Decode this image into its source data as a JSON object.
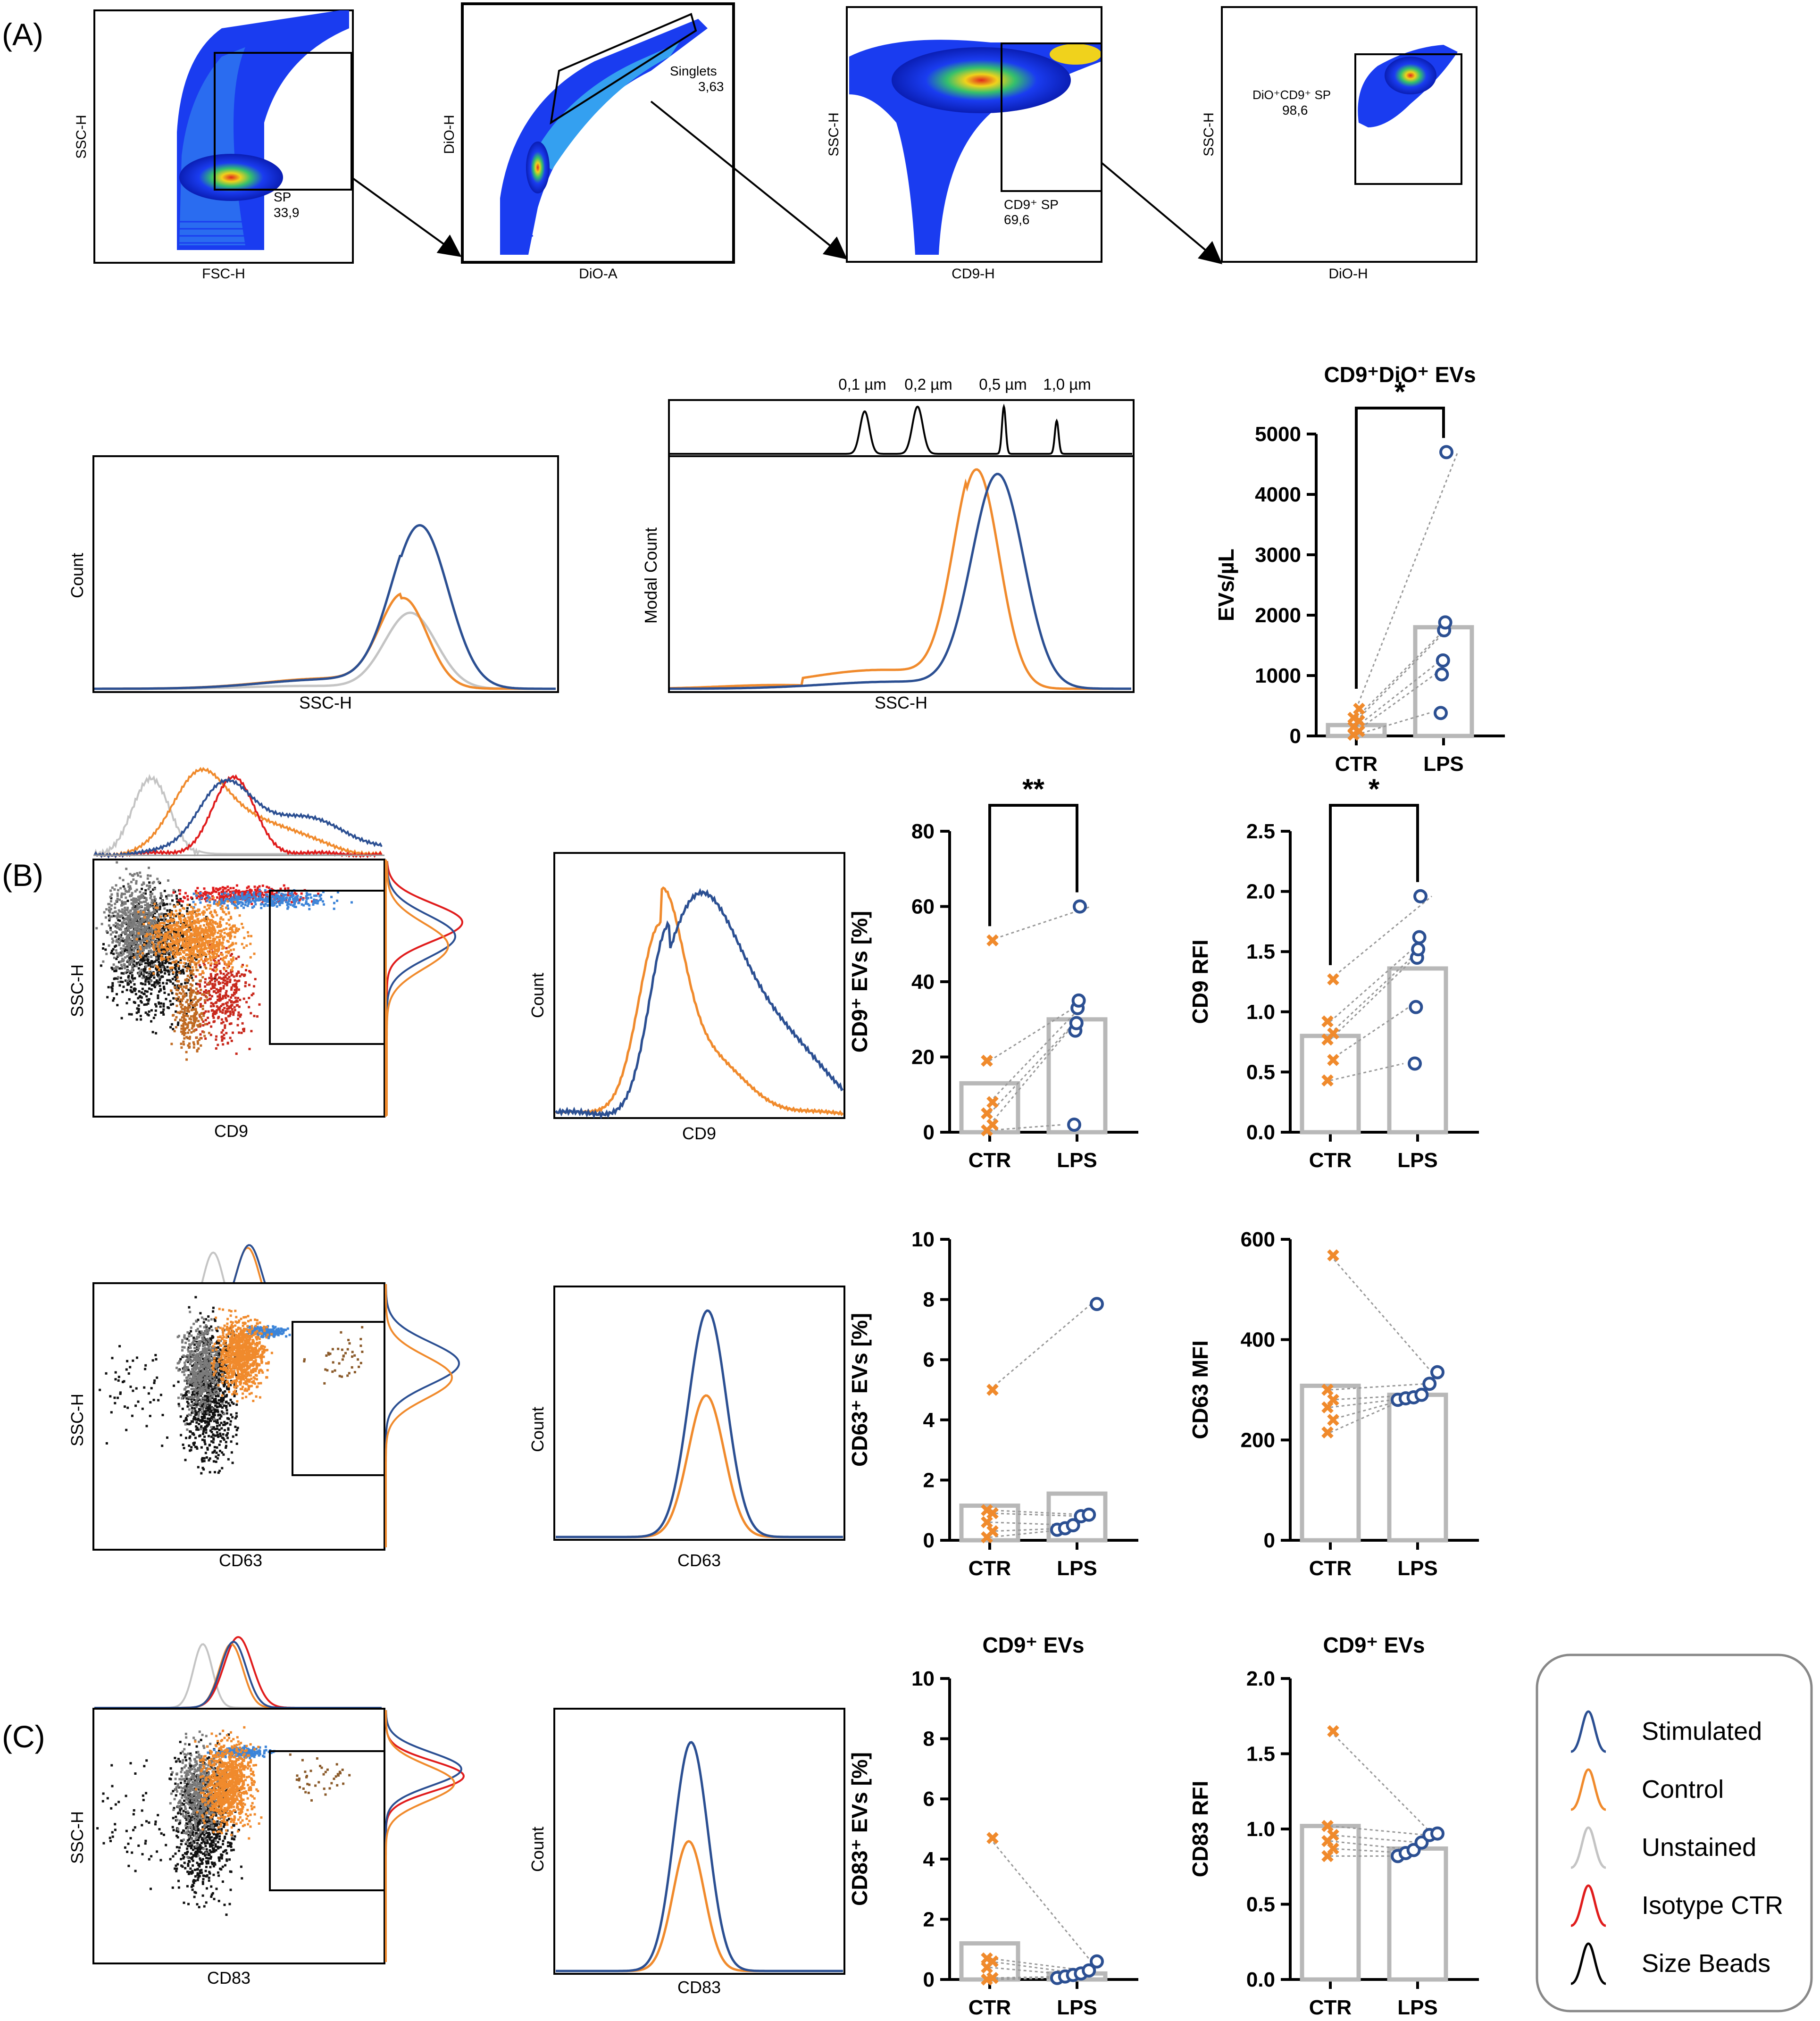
{
  "colors": {
    "stimulated": "#2b4f92",
    "control": "#f08a2c",
    "unstained": "#c4c4c4",
    "isotype": "#e01c1c",
    "beads": "#000000",
    "bar": "#b8b8b8"
  },
  "panels": {
    "A": "(A)",
    "B": "(B)",
    "C": "(C)"
  },
  "flow": [
    {
      "x": "FSC-H",
      "y": "SSC-H",
      "gate": "SP",
      "value": "33,9"
    },
    {
      "x": "DiO-A",
      "y": "DiO-H",
      "gate": "Singlets",
      "value": "3,63"
    },
    {
      "x": "CD9-H",
      "y": "SSC-H",
      "gate": "CD9⁺ SP",
      "value": "69,6"
    },
    {
      "x": "DiO-H",
      "y": "SSC-H",
      "gate": "DiO⁺CD9⁺ SP",
      "value": "98,6"
    }
  ],
  "hist": {
    "ssc_count": {
      "x": "SSC-H",
      "y": "Count"
    },
    "ssc_modal": {
      "x": "SSC-H",
      "y": "Modal Count"
    },
    "beads": [
      "0,1 µm",
      "0,2 µm",
      "0,5 µm",
      "1,0 µm"
    ],
    "cd9": {
      "x": "CD9",
      "y": "Count"
    },
    "cd63": {
      "x": "CD63",
      "y": "Count"
    },
    "cd83": {
      "x": "CD83",
      "y": "Count"
    }
  },
  "scatter": [
    {
      "x": "CD9",
      "y": "SSC-H"
    },
    {
      "x": "CD63",
      "y": "SSC-H"
    },
    {
      "x": "CD83",
      "y": "SSC-H"
    }
  ],
  "chart_data": [
    {
      "id": "evs",
      "type": "bar",
      "title": "CD9⁺DiO⁺ EVs",
      "ylabel": "EVs/µL",
      "categories": [
        "CTR",
        "LPS"
      ],
      "bars": [
        180,
        1800
      ],
      "ylim": [
        0,
        5000
      ],
      "yticks": [
        0,
        1000,
        2000,
        3000,
        4000,
        5000
      ],
      "ctr": [
        20,
        80,
        150,
        250,
        300,
        450
      ],
      "lps": [
        380,
        1020,
        1250,
        1750,
        1880,
        4700
      ],
      "sig": "*"
    },
    {
      "id": "cd9pct",
      "type": "bar",
      "ylabel": "CD9⁺ EVs [%]",
      "categories": [
        "CTR",
        "LPS"
      ],
      "bars": [
        13,
        30
      ],
      "ylim": [
        0,
        80
      ],
      "yticks": [
        0,
        20,
        40,
        60,
        80
      ],
      "ctr": [
        0.5,
        2,
        5,
        8,
        19,
        51
      ],
      "lps": [
        2,
        27,
        29,
        33,
        35,
        60
      ],
      "sig": "**"
    },
    {
      "id": "cd9rfi",
      "type": "bar",
      "ylabel": "CD9 RFI",
      "categories": [
        "CTR",
        "LPS"
      ],
      "bars": [
        0.8,
        1.36
      ],
      "ylim": [
        0,
        2.5
      ],
      "yticks": [
        0,
        0.5,
        1.0,
        1.5,
        2.0,
        2.5
      ],
      "ytick_labels": [
        "0.0",
        "0.5",
        "1.0",
        "1.5",
        "2.0",
        "2.5"
      ],
      "ctr": [
        0.43,
        0.6,
        0.77,
        0.82,
        0.92,
        1.27
      ],
      "lps": [
        0.57,
        1.04,
        1.45,
        1.52,
        1.62,
        1.96
      ],
      "sig": "*"
    },
    {
      "id": "cd63pct",
      "type": "bar",
      "ylabel": "CD63⁺ EVs [%]",
      "categories": [
        "CTR",
        "LPS"
      ],
      "bars": [
        1.15,
        1.55
      ],
      "ylim": [
        0,
        10
      ],
      "yticks": [
        0,
        2,
        4,
        6,
        8,
        10
      ],
      "ctr": [
        0.1,
        0.3,
        0.6,
        0.9,
        1.0,
        5.0
      ],
      "lps": [
        0.35,
        0.4,
        0.5,
        0.8,
        0.85,
        7.85
      ],
      "sig": ""
    },
    {
      "id": "cd63mfi",
      "type": "bar",
      "ylabel": "CD63 MFI",
      "categories": [
        "CTR",
        "LPS"
      ],
      "bars": [
        308,
        290
      ],
      "ylim": [
        0,
        600
      ],
      "yticks": [
        0,
        200,
        400,
        600
      ],
      "ctr": [
        215,
        240,
        265,
        280,
        300,
        568
      ],
      "lps": [
        280,
        283,
        285,
        290,
        312,
        335
      ],
      "sig": ""
    },
    {
      "id": "cd83pct",
      "type": "bar",
      "title": "CD9⁺ EVs",
      "ylabel": "CD83⁺ EVs [%]",
      "categories": [
        "CTR",
        "LPS"
      ],
      "bars": [
        1.2,
        0.2
      ],
      "ylim": [
        0,
        10
      ],
      "yticks": [
        0,
        2,
        4,
        6,
        8,
        10
      ],
      "ctr": [
        0.0,
        0.05,
        0.4,
        0.6,
        0.7,
        4.7
      ],
      "lps": [
        0.05,
        0.1,
        0.15,
        0.2,
        0.3,
        0.6
      ],
      "sig": ""
    },
    {
      "id": "cd83rfi",
      "type": "bar",
      "title": "CD9⁺ EVs",
      "ylabel": "CD83 RFI",
      "categories": [
        "CTR",
        "LPS"
      ],
      "bars": [
        1.02,
        0.87
      ],
      "ylim": [
        0,
        2.0
      ],
      "yticks": [
        0,
        0.5,
        1.0,
        1.5,
        2.0
      ],
      "ytick_labels": [
        "0.0",
        "0.5",
        "1.0",
        "1.5",
        "2.0"
      ],
      "ctr": [
        0.82,
        0.87,
        0.92,
        0.96,
        1.02,
        1.65
      ],
      "lps": [
        0.82,
        0.84,
        0.86,
        0.91,
        0.96,
        0.97
      ],
      "sig": ""
    }
  ],
  "legend": [
    {
      "label": "Stimulated",
      "color": "#2b4f92"
    },
    {
      "label": "Control",
      "color": "#f08a2c"
    },
    {
      "label": "Unstained",
      "color": "#c4c4c4"
    },
    {
      "label": "Isotype CTR",
      "color": "#e01c1c"
    },
    {
      "label": "Size Beads",
      "color": "#000000"
    }
  ]
}
